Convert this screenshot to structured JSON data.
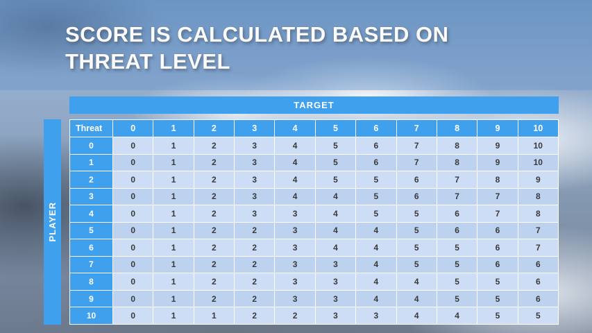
{
  "slide": {
    "title": "SCORE IS CALCULATED BASED ON THREAT LEVEL"
  },
  "table": {
    "target_label": "TARGET",
    "player_label": "PLAYER",
    "header": [
      "Threat",
      "0",
      "1",
      "2",
      "3",
      "4",
      "5",
      "6",
      "7",
      "8",
      "9",
      "10"
    ],
    "rows": [
      {
        "threat": "0",
        "values": [
          "0",
          "1",
          "2",
          "3",
          "4",
          "5",
          "6",
          "7",
          "8",
          "9",
          "10"
        ]
      },
      {
        "threat": "1",
        "values": [
          "0",
          "1",
          "2",
          "3",
          "4",
          "5",
          "6",
          "7",
          "8",
          "9",
          "10"
        ]
      },
      {
        "threat": "2",
        "values": [
          "0",
          "1",
          "2",
          "3",
          "4",
          "5",
          "5",
          "6",
          "7",
          "8",
          "9"
        ]
      },
      {
        "threat": "3",
        "values": [
          "0",
          "1",
          "2",
          "3",
          "4",
          "4",
          "5",
          "6",
          "7",
          "7",
          "8"
        ]
      },
      {
        "threat": "4",
        "values": [
          "0",
          "1",
          "2",
          "3",
          "3",
          "4",
          "5",
          "5",
          "6",
          "7",
          "8"
        ]
      },
      {
        "threat": "5",
        "values": [
          "0",
          "1",
          "2",
          "2",
          "3",
          "4",
          "4",
          "5",
          "6",
          "6",
          "7"
        ]
      },
      {
        "threat": "6",
        "values": [
          "0",
          "1",
          "2",
          "2",
          "3",
          "4",
          "4",
          "5",
          "5",
          "6",
          "7"
        ]
      },
      {
        "threat": "7",
        "values": [
          "0",
          "1",
          "2",
          "2",
          "3",
          "3",
          "4",
          "5",
          "5",
          "6",
          "6"
        ]
      },
      {
        "threat": "8",
        "values": [
          "0",
          "1",
          "2",
          "2",
          "3",
          "3",
          "4",
          "4",
          "5",
          "5",
          "6"
        ]
      },
      {
        "threat": "9",
        "values": [
          "0",
          "1",
          "2",
          "2",
          "3",
          "3",
          "4",
          "4",
          "5",
          "5",
          "6"
        ]
      },
      {
        "threat": "10",
        "values": [
          "0",
          "1",
          "1",
          "2",
          "2",
          "3",
          "3",
          "4",
          "4",
          "5",
          "5"
        ]
      }
    ]
  },
  "colors": {
    "accent_blue": "#3fa0ee",
    "title_band": "rgba(78,128,185,0.62)",
    "row_light": "#ccddf5",
    "row_dark": "#bdd2ef",
    "cell_text": "#3a3a3a"
  }
}
